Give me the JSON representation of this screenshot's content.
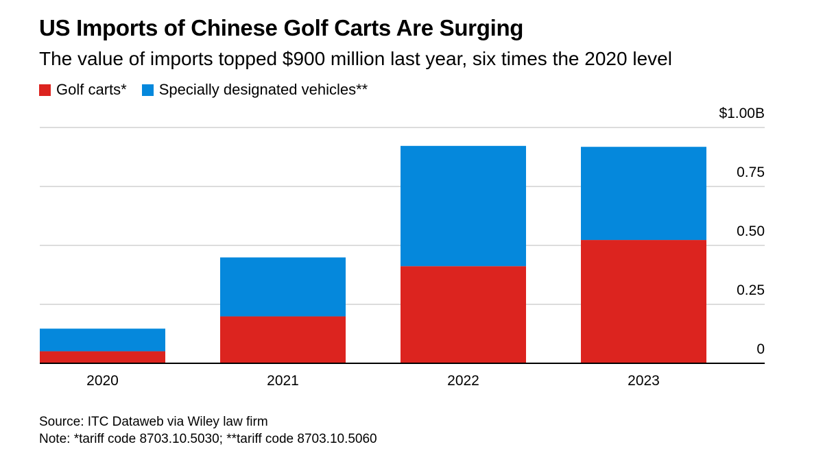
{
  "title": "US Imports of Chinese Golf Carts Are Surging",
  "subtitle": "The value of imports topped $900 million last year, six times the 2020 level",
  "footer": {
    "source": "Source: ITC Dataweb via Wiley law firm",
    "note": "Note: *tariff code 8703.10.5030; **tariff code 8703.10.5060"
  },
  "chart_data": {
    "type": "bar",
    "stacked": true,
    "categories": [
      "2020",
      "2021",
      "2022",
      "2023"
    ],
    "series": [
      {
        "name": "Golf carts*",
        "color": "#dc241f",
        "values": [
          0.051,
          0.199,
          0.412,
          0.523
        ]
      },
      {
        "name": "Specially designated vehicles**",
        "color": "#0588dc",
        "values": [
          0.096,
          0.25,
          0.51,
          0.395
        ]
      }
    ],
    "ylim": [
      0,
      1.0
    ],
    "yticks": [
      0,
      0.25,
      0.5,
      0.75,
      1.0
    ],
    "ytick_labels": [
      "0",
      "0.25",
      "0.50",
      "0.75",
      "$1.00B"
    ],
    "y_axis_side": "right",
    "grid": true,
    "legend": "top-left",
    "unit": "USD billions"
  }
}
